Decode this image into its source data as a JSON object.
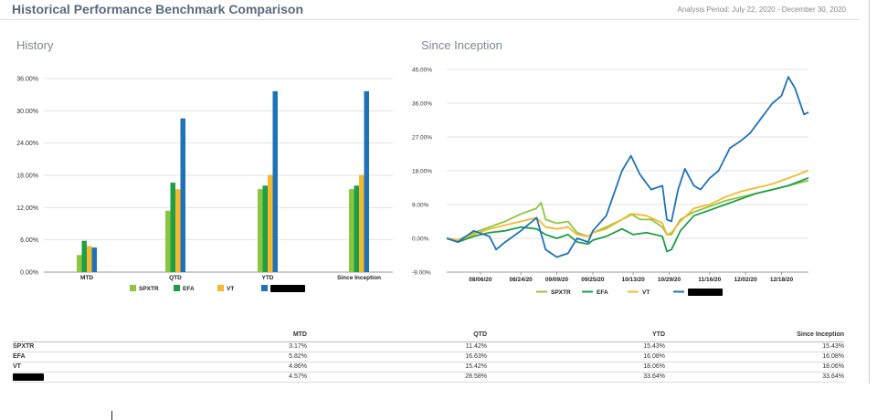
{
  "header": {
    "title": "Historical Performance Benchmark Comparison",
    "period": "Analysis Period: July 22, 2020 - December 30, 2020"
  },
  "colors": {
    "SPXTR": "#8cc63f",
    "EFA": "#1f9e48",
    "VT": "#f5b82e",
    "FUND": "#1f72b8"
  },
  "chart_data": [
    {
      "type": "bar",
      "title": "History",
      "categories": [
        "MTD",
        "QTD",
        "YTD",
        "Since Inception"
      ],
      "ylim": [
        0,
        36
      ],
      "yticks": [
        "0.00%",
        "6.00%",
        "12.00%",
        "18.00%",
        "24.00%",
        "30.00%",
        "36.00%"
      ],
      "series": [
        {
          "name": "SPXTR",
          "values": [
            3.17,
            11.42,
            15.43,
            15.43
          ]
        },
        {
          "name": "EFA",
          "values": [
            5.82,
            16.63,
            16.08,
            16.08
          ]
        },
        {
          "name": "VT",
          "values": [
            4.86,
            15.42,
            18.06,
            18.06
          ]
        },
        {
          "name": "",
          "redacted": true,
          "values": [
            4.57,
            28.58,
            33.64,
            33.64
          ]
        }
      ],
      "legend": "bottom"
    },
    {
      "type": "line",
      "title": "Since Inception",
      "x_ticks": [
        "08/06/20",
        "08/24/20",
        "09/09/20",
        "09/25/20",
        "10/13/20",
        "10/29/20",
        "11/16/20",
        "12/02/20",
        "12/18/20"
      ],
      "ylim": [
        -9,
        45
      ],
      "yticks": [
        "-9.00%",
        "0.00%",
        "9.00%",
        "18.00%",
        "27.00%",
        "36.00%",
        "45.00%"
      ],
      "x_range": [
        "07/22/20",
        "12/30/20"
      ],
      "series": [
        {
          "name": "SPXTR",
          "dates": [
            "07/22/20",
            "07/27/20",
            "08/03/20",
            "08/10/20",
            "08/17/20",
            "08/24/20",
            "08/31/20",
            "09/02/20",
            "09/04/20",
            "09/09/20",
            "09/14/20",
            "09/18/20",
            "09/23/20",
            "09/25/20",
            "10/01/20",
            "10/08/20",
            "10/12/20",
            "10/16/20",
            "10/21/20",
            "10/26/20",
            "10/28/20",
            "10/30/20",
            "11/03/20",
            "11/09/20",
            "11/16/20",
            "11/23/20",
            "11/30/20",
            "12/07/20",
            "12/14/20",
            "12/21/20",
            "12/30/20"
          ],
          "values": [
            0,
            -0.5,
            1.5,
            3,
            4.5,
            6.5,
            8,
            9.5,
            5,
            4,
            4.5,
            1.5,
            0.5,
            1.5,
            3,
            5,
            6.5,
            5,
            5,
            3,
            1,
            1,
            5,
            7,
            8.5,
            10,
            11,
            12,
            13,
            14,
            15.4
          ]
        },
        {
          "name": "EFA",
          "dates": [
            "07/22/20",
            "07/27/20",
            "08/03/20",
            "08/10/20",
            "08/17/20",
            "08/24/20",
            "08/31/20",
            "09/04/20",
            "09/09/20",
            "09/14/20",
            "09/18/20",
            "09/23/20",
            "09/25/20",
            "10/01/20",
            "10/08/20",
            "10/13/20",
            "10/19/20",
            "10/26/20",
            "10/28/20",
            "10/30/20",
            "11/03/20",
            "11/09/20",
            "11/16/20",
            "11/23/20",
            "11/30/20",
            "12/07/20",
            "12/14/20",
            "12/21/20",
            "12/30/20"
          ],
          "values": [
            0,
            -1,
            0.5,
            1.5,
            2,
            3,
            2.5,
            1,
            0,
            1,
            -1,
            -1.5,
            -0.5,
            0.5,
            2.5,
            1,
            1.5,
            0.5,
            -3.5,
            -3,
            2,
            6,
            7.5,
            9,
            10.5,
            12,
            13,
            14,
            16.1
          ]
        },
        {
          "name": "VT",
          "dates": [
            "07/22/20",
            "07/27/20",
            "08/03/20",
            "08/10/20",
            "08/17/20",
            "08/24/20",
            "08/31/20",
            "09/04/20",
            "09/09/20",
            "09/14/20",
            "09/18/20",
            "09/23/20",
            "09/25/20",
            "10/01/20",
            "10/08/20",
            "10/13/20",
            "10/19/20",
            "10/26/20",
            "10/28/20",
            "10/30/20",
            "11/03/20",
            "11/09/20",
            "11/16/20",
            "11/23/20",
            "11/30/20",
            "12/07/20",
            "12/14/20",
            "12/21/20",
            "12/30/20"
          ],
          "values": [
            0,
            -0.5,
            1,
            2.5,
            3.5,
            4.5,
            5.5,
            3,
            2.5,
            3,
            1,
            0.5,
            1.5,
            2.5,
            5,
            6.5,
            6,
            4,
            1,
            1.5,
            4.5,
            8,
            9,
            11,
            12.5,
            13.5,
            14.5,
            16,
            18.1
          ]
        },
        {
          "name": "",
          "redacted": true,
          "dates": [
            "07/22/20",
            "07/27/20",
            "08/03/20",
            "08/10/20",
            "08/13/20",
            "08/17/20",
            "08/24/20",
            "08/31/20",
            "09/04/20",
            "09/09/20",
            "09/14/20",
            "09/18/20",
            "09/23/20",
            "09/25/20",
            "10/01/20",
            "10/08/20",
            "10/12/20",
            "10/16/20",
            "10/21/20",
            "10/26/20",
            "10/28/20",
            "10/30/20",
            "11/02/20",
            "11/05/20",
            "11/09/20",
            "11/12/20",
            "11/16/20",
            "11/20/20",
            "11/25/20",
            "11/30/20",
            "12/04/20",
            "12/09/20",
            "12/14/20",
            "12/18/20",
            "12/21/20",
            "12/24/20",
            "12/28/20",
            "12/30/20"
          ],
          "values": [
            0,
            -1,
            2,
            0.5,
            -3,
            -1,
            2,
            5.5,
            -3,
            -5,
            -4,
            0,
            -1,
            2,
            6,
            18,
            22,
            17,
            13,
            14,
            5,
            4.5,
            13,
            18.5,
            14,
            13,
            16,
            18,
            24,
            26,
            28,
            32,
            36,
            38,
            43,
            40,
            33,
            33.6
          ]
        }
      ],
      "legend": "bottom"
    }
  ],
  "table": {
    "headers": [
      "",
      "MTD",
      "QTD",
      "YTD",
      "Since Inception"
    ],
    "rows": [
      {
        "label": "SPXTR",
        "values": [
          "3.17%",
          "11.42%",
          "15.43%",
          "15.43%"
        ]
      },
      {
        "label": "EFA",
        "values": [
          "5.82%",
          "16.63%",
          "16.08%",
          "16.08%"
        ]
      },
      {
        "label": "VT",
        "values": [
          "4.86%",
          "15.42%",
          "18.06%",
          "18.06%"
        ]
      },
      {
        "label": "",
        "redacted": true,
        "values": [
          "4.57%",
          "28.58%",
          "33.64%",
          "33.64%"
        ]
      }
    ]
  }
}
